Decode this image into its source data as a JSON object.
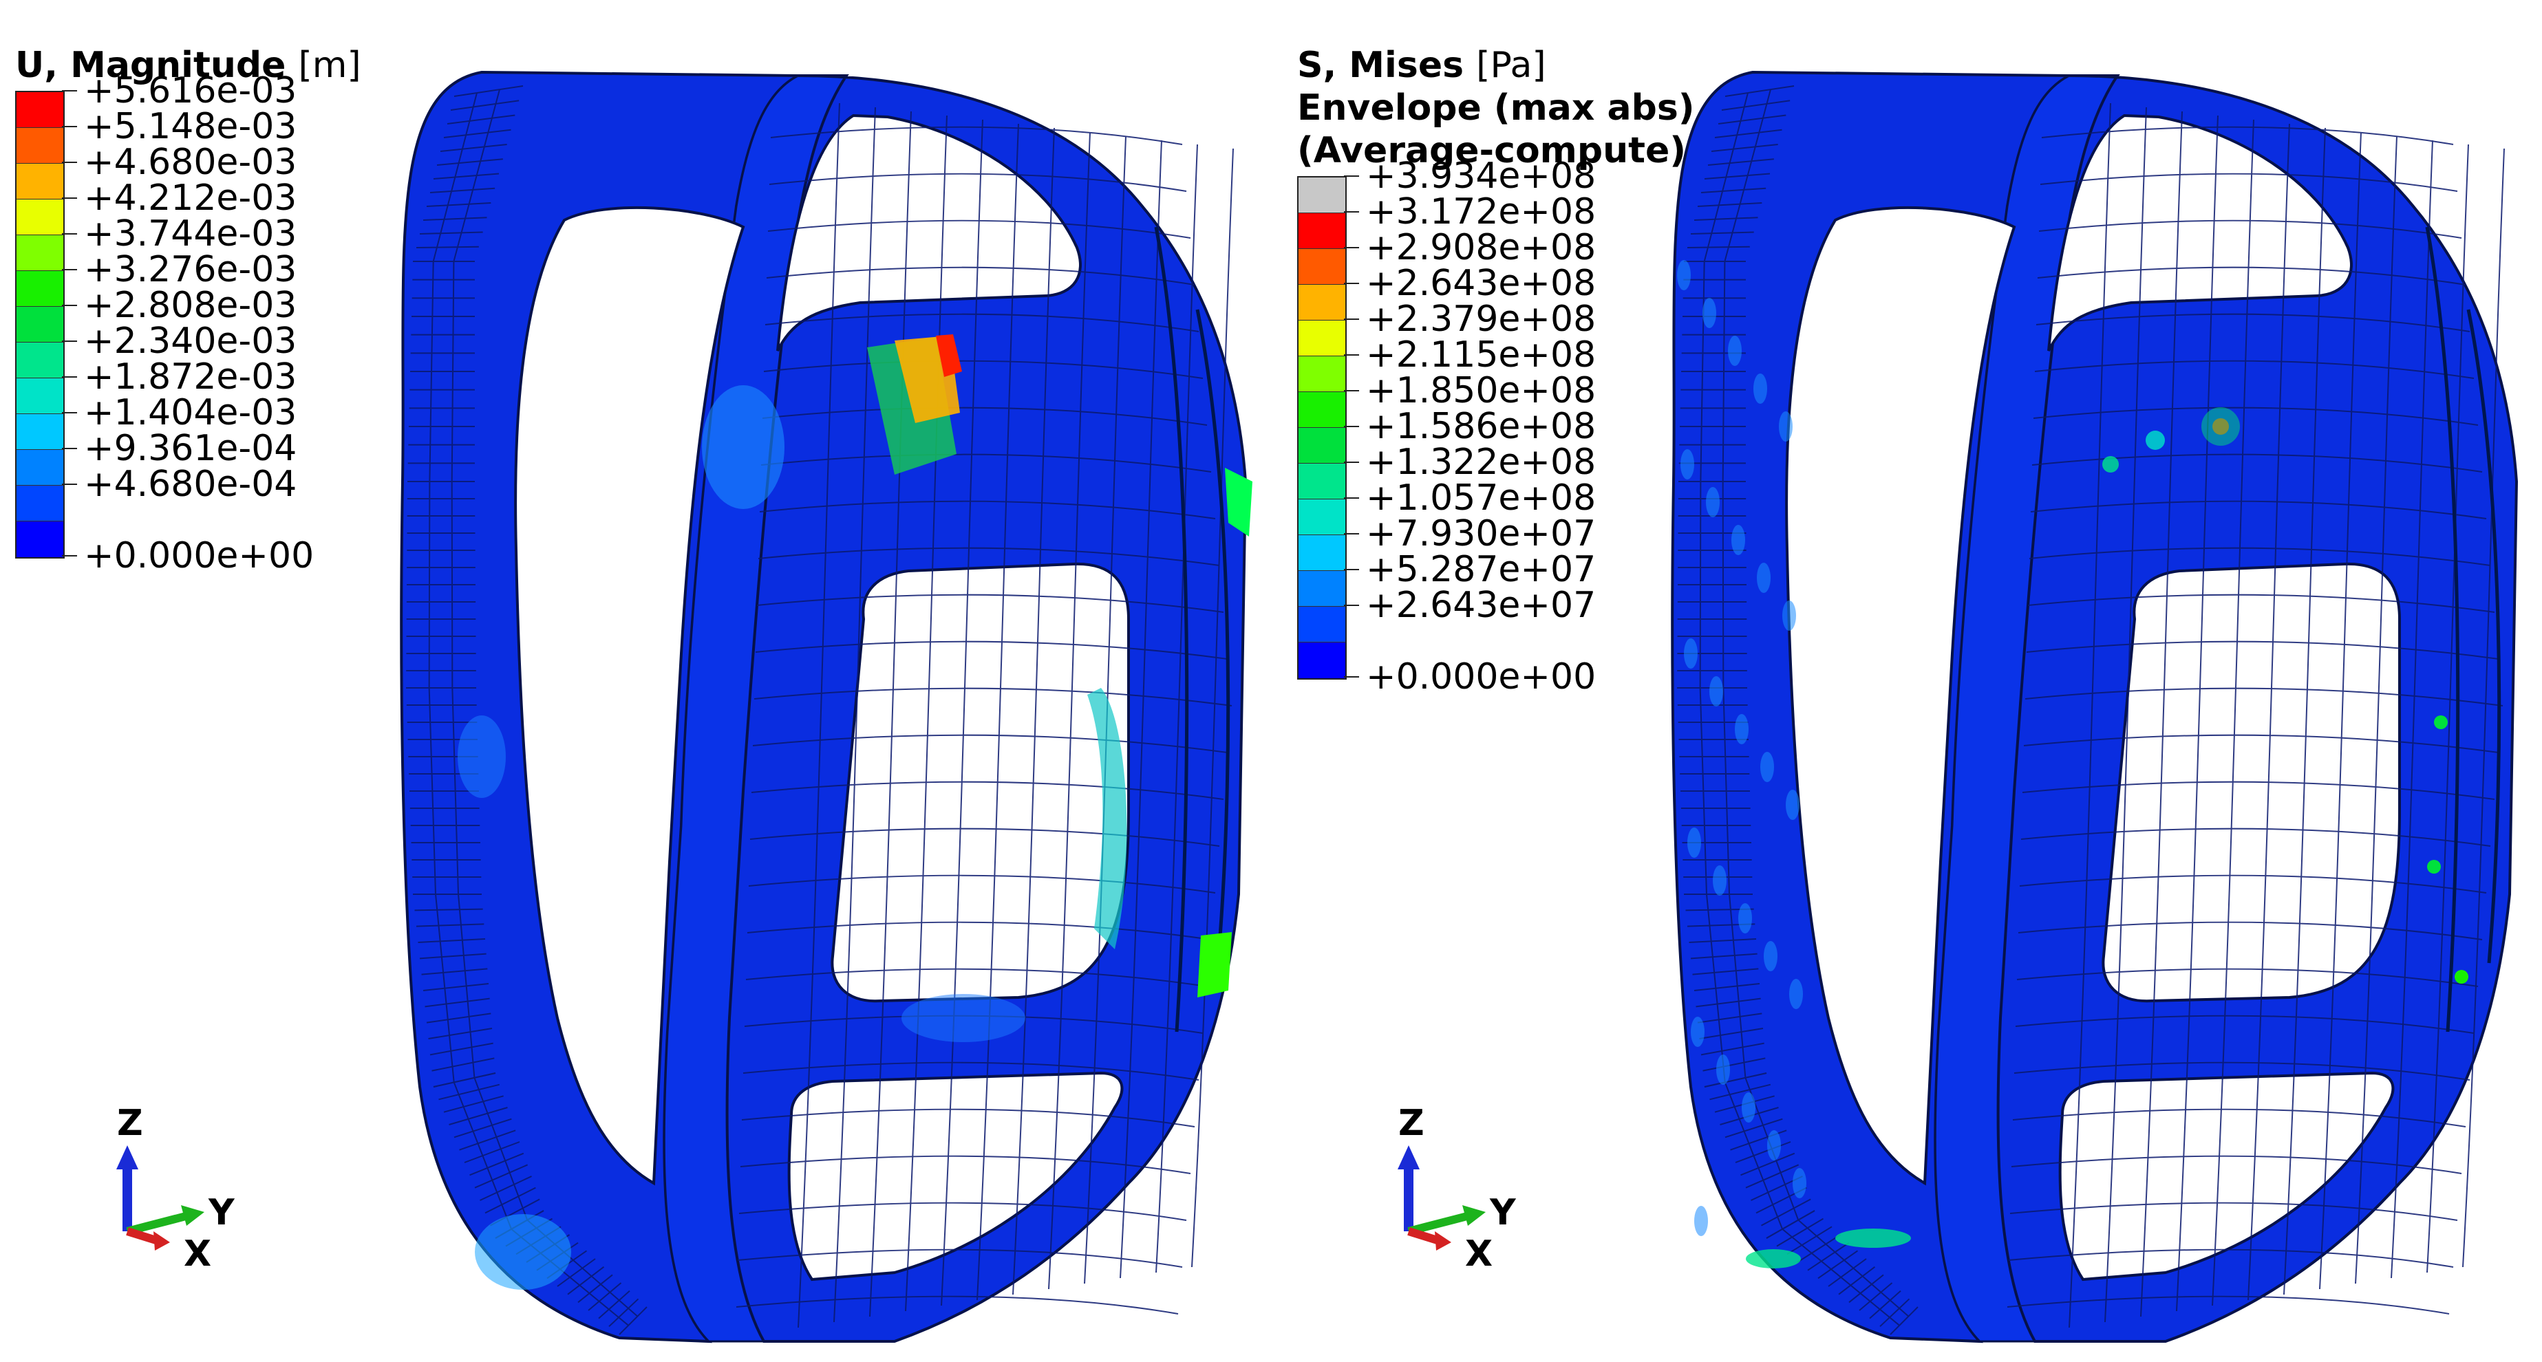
{
  "left_panel": {
    "legend": {
      "title": "U, Magnitude",
      "unit": "[m]",
      "levels": [
        "+5.616e-03",
        "+5.148e-03",
        "+4.680e-03",
        "+4.212e-03",
        "+3.744e-03",
        "+3.276e-03",
        "+2.808e-03",
        "+2.340e-03",
        "+1.872e-03",
        "+1.404e-03",
        "+9.361e-04",
        "+4.680e-04",
        "+0.000e+00"
      ],
      "colors": [
        "#ff0000",
        "#ff5a00",
        "#ffb300",
        "#e8ff00",
        "#7fff00",
        "#18f000",
        "#00e03c",
        "#00e58c",
        "#00e3c8",
        "#00c8ff",
        "#0082ff",
        "#0046ff",
        "#0000ff"
      ]
    },
    "triad": {
      "z": "Z",
      "y": "Y",
      "x": "X"
    }
  },
  "right_panel": {
    "legend": {
      "title": "S, Mises",
      "unit": "[Pa]",
      "subtitle_1": "Envelope (max abs)",
      "subtitle_2": "(Average-compute)",
      "levels": [
        "+3.934e+08",
        "+3.172e+08",
        "+2.908e+08",
        "+2.643e+08",
        "+2.379e+08",
        "+2.115e+08",
        "+1.850e+08",
        "+1.586e+08",
        "+1.322e+08",
        "+1.057e+08",
        "+7.930e+07",
        "+5.287e+07",
        "+2.643e+07",
        "+0.000e+00"
      ],
      "colors": [
        "#c8c8c8",
        "#ff0000",
        "#ff5a00",
        "#ffb300",
        "#e8ff00",
        "#7fff00",
        "#18f000",
        "#00e03c",
        "#00e58c",
        "#00e3c8",
        "#00c8ff",
        "#0082ff",
        "#0046ff",
        "#0000ff"
      ]
    },
    "triad": {
      "z": "Z",
      "y": "Y",
      "x": "X"
    }
  },
  "colors": {
    "model_base": "#0a2de0",
    "mesh_line": "#0b1a6e",
    "edge": "#06124a"
  }
}
